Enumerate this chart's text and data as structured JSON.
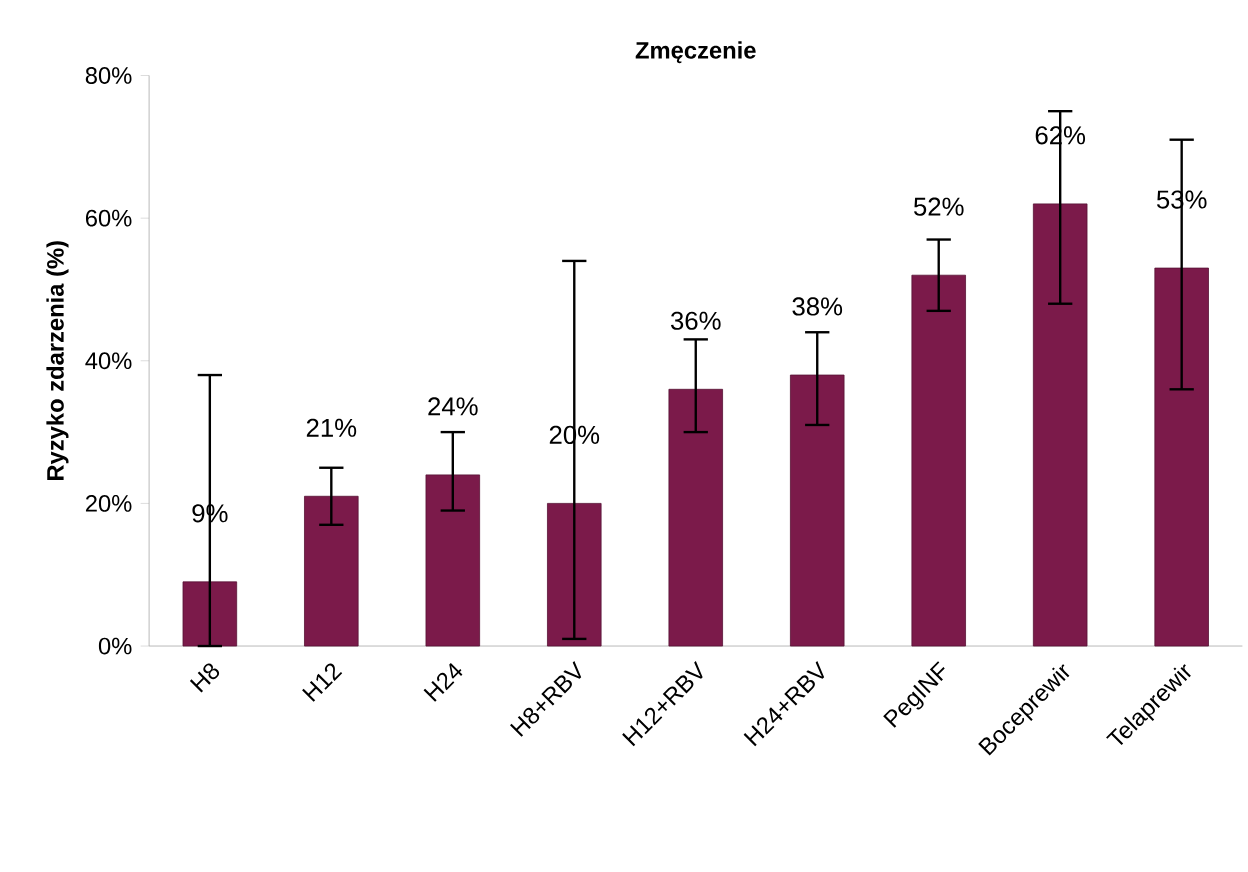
{
  "chart_data": {
    "type": "bar",
    "title": "Zmęczenie",
    "ylabel": "Ryzyko zdarzenia (%)",
    "categories": [
      "H8",
      "H12",
      "H24",
      "H8+RBV",
      "H12+RBV",
      "H24+RBV",
      "PegINF",
      "Boceprewir",
      "Telaprewir"
    ],
    "values": [
      9,
      21,
      24,
      20,
      36,
      38,
      52,
      62,
      53
    ],
    "value_labels": [
      "9%",
      "21%",
      "24%",
      "20%",
      "36%",
      "38%",
      "52%",
      "62%",
      "53%"
    ],
    "errors": [
      [
        0,
        38
      ],
      [
        17,
        25
      ],
      [
        19,
        30
      ],
      [
        1,
        54
      ],
      [
        30,
        43
      ],
      [
        31,
        44
      ],
      [
        47,
        57
      ],
      [
        48,
        75
      ],
      [
        36,
        71
      ]
    ],
    "color": "#7b1a4a",
    "ylim": [
      0,
      80
    ],
    "yticks": [
      {
        "value": 0,
        "label": "0%"
      },
      {
        "value": 20,
        "label": "20%"
      },
      {
        "value": 40,
        "label": "40%"
      },
      {
        "value": 60,
        "label": "60%"
      },
      {
        "value": 80,
        "label": "80%"
      }
    ]
  }
}
